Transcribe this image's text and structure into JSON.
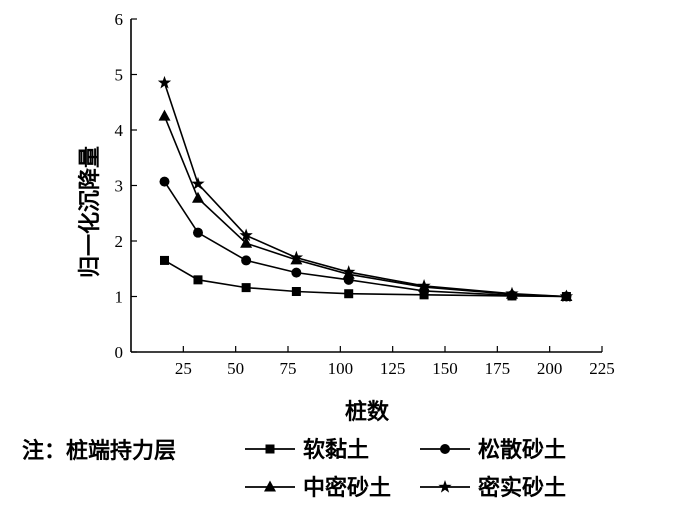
{
  "chart_data": {
    "type": "line",
    "xlabel": "桩数",
    "ylabel": "归一化沉降量",
    "xlim": [
      0,
      225
    ],
    "ylim": [
      0,
      6
    ],
    "xticks": [
      25,
      50,
      75,
      100,
      125,
      150,
      175,
      200,
      225
    ],
    "yticks": [
      0,
      1,
      2,
      3,
      4,
      5,
      6
    ],
    "grid": false,
    "legend_title": "注：桩端持力层",
    "legend_position": "bottom",
    "x": [
      16,
      32,
      55,
      79,
      104,
      140,
      182,
      208
    ],
    "series": [
      {
        "name": "软黏土",
        "marker": "square",
        "values": [
          1.65,
          1.3,
          1.16,
          1.09,
          1.05,
          1.03,
          1.01,
          1.0
        ]
      },
      {
        "name": "松散砂土",
        "marker": "circle",
        "values": [
          3.07,
          2.15,
          1.65,
          1.43,
          1.3,
          1.1,
          1.02,
          1.0
        ]
      },
      {
        "name": "中密砂土",
        "marker": "triangle",
        "values": [
          4.25,
          2.77,
          1.96,
          1.66,
          1.4,
          1.17,
          1.04,
          1.0
        ]
      },
      {
        "name": "密实砂土",
        "marker": "star",
        "values": [
          4.85,
          3.03,
          2.1,
          1.7,
          1.44,
          1.19,
          1.05,
          1.0
        ]
      }
    ]
  }
}
